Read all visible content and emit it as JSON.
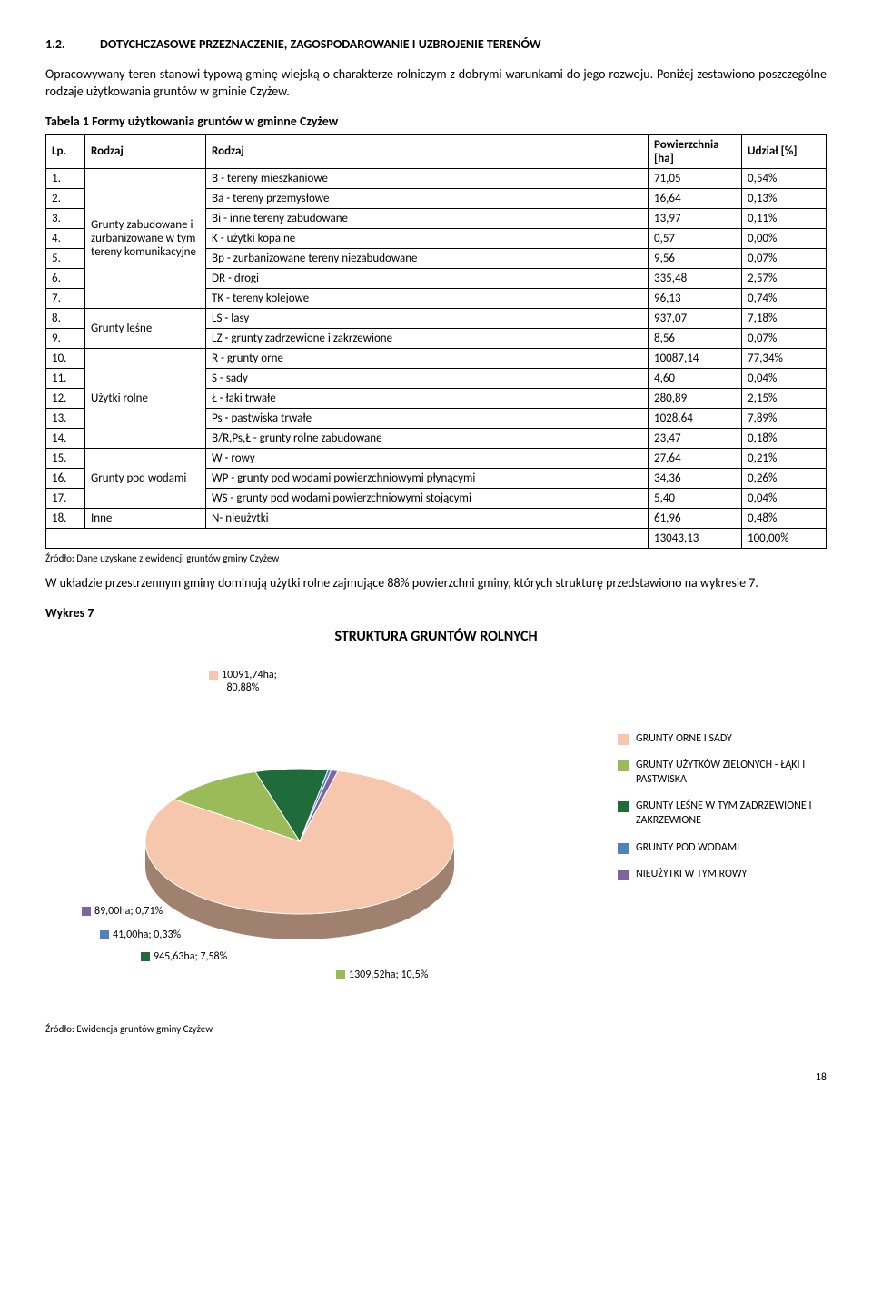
{
  "section": {
    "number": "1.2.",
    "title": "DOTYCHCZASOWE PRZEZNACZENIE, ZAGOSPODAROWANIE I UZBROJENIE TERENÓW"
  },
  "p1": "Opracowywany teren stanowi typową gminę wiejską o charakterze rolniczym z dobrymi warunkami do jego rozwoju. Poniżej zestawiono poszczególne rodzaje użytkowania gruntów w gminie Czyżew.",
  "table_caption": "Tabela 1 Formy użytkowania gruntów w gminne Czyżew",
  "headers": {
    "lp": "Lp.",
    "rodzaj1": "Rodzaj",
    "rodzaj2": "Rodzaj",
    "pow": "Powierzchnia [ha]",
    "udzial": "Udział [%]"
  },
  "groups": [
    {
      "label": "Grunty zabudowane i zurbanizowane w tym tereny komunikacyjne",
      "rows": [
        {
          "n": "1.",
          "r": "B - tereny mieszkaniowe",
          "v": "71,05",
          "p": "0,54%"
        },
        {
          "n": "2.",
          "r": "Ba - tereny przemysłowe",
          "v": "16,64",
          "p": "0,13%"
        },
        {
          "n": "3.",
          "r": "Bi - inne tereny zabudowane",
          "v": "13,97",
          "p": "0,11%"
        },
        {
          "n": "4.",
          "r": "K - użytki kopalne",
          "v": "0,57",
          "p": "0,00%"
        },
        {
          "n": "5.",
          "r": "Bp - zurbanizowane tereny niezabudowane",
          "v": "9,56",
          "p": "0,07%"
        },
        {
          "n": "6.",
          "r": "DR - drogi",
          "v": "335,48",
          "p": "2,57%"
        },
        {
          "n": "7.",
          "r": "TK - tereny kolejowe",
          "v": "96,13",
          "p": "0,74%"
        }
      ]
    },
    {
      "label": "Grunty leśne",
      "rows": [
        {
          "n": "8.",
          "r": "LS - lasy",
          "v": "937,07",
          "p": "7,18%"
        },
        {
          "n": "9.",
          "r": "LZ - grunty zadrzewione i zakrzewione",
          "v": "8,56",
          "p": "0,07%"
        }
      ]
    },
    {
      "label": "Użytki rolne",
      "rows": [
        {
          "n": "10.",
          "r": "R - grunty orne",
          "v": "10087,14",
          "p": "77,34%"
        },
        {
          "n": "11.",
          "r": "S - sady",
          "v": "4,60",
          "p": "0,04%"
        },
        {
          "n": "12.",
          "r": "Ł - łąki trwałe",
          "v": "280,89",
          "p": "2,15%"
        },
        {
          "n": "13.",
          "r": "Ps - pastwiska trwałe",
          "v": "1028,64",
          "p": "7,89%"
        },
        {
          "n": "14.",
          "r": "B/R,Ps,Ł - grunty rolne zabudowane",
          "v": "23,47",
          "p": "0,18%"
        }
      ]
    },
    {
      "label": "Grunty pod wodami",
      "rows": [
        {
          "n": "15.",
          "r": "W - rowy",
          "v": "27,64",
          "p": "0,21%"
        },
        {
          "n": "16.",
          "r": "WP - grunty pod wodami powierzchniowymi płynącymi",
          "v": "34,36",
          "p": "0,26%"
        },
        {
          "n": "17.",
          "r": "WS - grunty pod wodami powierzchniowymi stojącymi",
          "v": "5,40",
          "p": "0,04%"
        }
      ]
    },
    {
      "label": "Inne",
      "rows": [
        {
          "n": "18.",
          "r": "N- nieużytki",
          "v": "61,96",
          "p": "0,48%"
        }
      ]
    }
  ],
  "total": {
    "v": "13043,13",
    "p": "100,00%"
  },
  "source1": "Źródło: Dane uzyskane z ewidencji gruntów gminy Czyżew",
  "p2": "W układzie przestrzennym gminy dominują użytki rolne zajmujące 88% powierzchni gminy, których strukturę przedstawiono na wykresie 7.",
  "wykres_label": "Wykres 7",
  "chart": {
    "title": "STRUKTURA GRUNTÓW ROLNYCH",
    "background_color": "#ffffff",
    "slices": [
      {
        "label": "10091,74ha;\n80,88%",
        "color": "#f7c7ad",
        "pct": 80.88
      },
      {
        "label": "1309,52ha; 10,5%",
        "color": "#9bbb59",
        "pct": 10.5
      },
      {
        "label": "945,63ha; 7,58%",
        "color": "#1f6b3a",
        "pct": 7.58
      },
      {
        "label": "41,00ha; 0,33%",
        "color": "#4f81bd",
        "pct": 0.33
      },
      {
        "label": "89,00ha; 0,71%",
        "color": "#8064a2",
        "pct": 0.71
      }
    ],
    "legend": [
      {
        "color": "#f7c7ad",
        "text": "GRUNTY ORNE I SADY"
      },
      {
        "color": "#9bbb59",
        "text": "GRUNTY UŻYTKÓW ZIELONYCH - ŁĄKI I PASTWISKA"
      },
      {
        "color": "#1f6b3a",
        "text": "GRUNTY LEŚNE W TYM ZADRZEWIONE I ZAKRZEWIONE"
      },
      {
        "color": "#4f81bd",
        "text": "GRUNTY POD WODAMI"
      },
      {
        "color": "#8064a2",
        "text": "NIEUŻYTKI W TYM ROWY"
      }
    ]
  },
  "source2": "Źródło: Ewidencja gruntów gminy Czyżew",
  "page_number": "18"
}
